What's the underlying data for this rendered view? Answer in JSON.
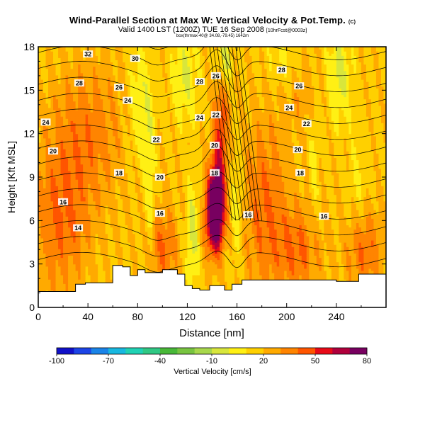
{
  "chart_data": {
    "type": "heatmap",
    "title": "Wind-Parallel Section at Max W: Vertical Velocity & Pot.Temp.",
    "title_mark": "(C)",
    "subtitle": "Valid 1400 LST (1200Z) TUE 16 Sep 2008",
    "subtitle_small": "(12Z)",
    "subtitle_run": "[10hrFcst@0003z]",
    "info_line": "box(thrmax-40@ 34.08,-79.45) 1642m",
    "xlabel": "Distance [nm]",
    "ylabel": "Height [Kft MSL]",
    "xlim": [
      0,
      280
    ],
    "ylim": [
      0,
      18
    ],
    "x_ticks": [
      "0",
      "40",
      "80",
      "120",
      "160",
      "200",
      "240"
    ],
    "y_ticks": [
      "0",
      "3",
      "6",
      "9",
      "12",
      "15",
      "18"
    ],
    "colorbar": {
      "label": "Vertical Velocity [cm/s]",
      "tick_labels": [
        "-100",
        "-70",
        "-40",
        "-10",
        "20",
        "50",
        "80"
      ],
      "range": [
        -100,
        80
      ],
      "colors": [
        "#1010c8",
        "#1c44e6",
        "#1a84e8",
        "#18b8e0",
        "#20d2b4",
        "#30c884",
        "#48b838",
        "#78c440",
        "#a8d84c",
        "#d8e63c",
        "#fff014",
        "#ffd000",
        "#ffaa00",
        "#ff8400",
        "#ff5500",
        "#e80a18",
        "#b0003c",
        "#780060"
      ]
    },
    "updraft_core": {
      "x": 142,
      "z": 6.5,
      "max_w": 80
    },
    "theta_contour_labels": [
      {
        "label": "14",
        "x": 32,
        "z": 5.5
      },
      {
        "label": "16",
        "x": 20,
        "z": 7.3
      },
      {
        "label": "16",
        "x": 98,
        "z": 6.5
      },
      {
        "label": "16",
        "x": 169,
        "z": 6.4
      },
      {
        "label": "16",
        "x": 230,
        "z": 6.3
      },
      {
        "label": "18",
        "x": 65,
        "z": 9.3
      },
      {
        "label": "18",
        "x": 142,
        "z": 9.3
      },
      {
        "label": "18",
        "x": 211,
        "z": 9.3
      },
      {
        "label": "20",
        "x": 12,
        "z": 10.8
      },
      {
        "label": "20",
        "x": 98,
        "z": 9.0
      },
      {
        "label": "20",
        "x": 142,
        "z": 11.2
      },
      {
        "label": "20",
        "x": 209,
        "z": 10.9
      },
      {
        "label": "22",
        "x": 95,
        "z": 11.6
      },
      {
        "label": "22",
        "x": 216,
        "z": 12.7
      },
      {
        "label": "24",
        "x": 6,
        "z": 12.8
      },
      {
        "label": "24",
        "x": 72,
        "z": 14.3
      },
      {
        "label": "24",
        "x": 130,
        "z": 13.1
      },
      {
        "label": "24",
        "x": 202,
        "z": 13.8
      },
      {
        "label": "26",
        "x": 65,
        "z": 15.2
      },
      {
        "label": "26",
        "x": 143,
        "z": 16.0
      },
      {
        "label": "26",
        "x": 210,
        "z": 15.3
      },
      {
        "label": "28",
        "x": 33,
        "z": 15.5
      },
      {
        "label": "28",
        "x": 130,
        "z": 15.6
      },
      {
        "label": "28",
        "x": 196,
        "z": 16.4
      },
      {
        "label": "30",
        "x": 78,
        "z": 17.2
      },
      {
        "label": "32",
        "x": 40,
        "z": 17.5
      },
      {
        "label": "22",
        "x": 143,
        "z": 13.3
      }
    ],
    "terrain": [
      [
        0,
        1.1
      ],
      [
        30,
        1.1
      ],
      [
        30,
        1.6
      ],
      [
        38,
        1.6
      ],
      [
        38,
        1.7
      ],
      [
        60,
        1.7
      ],
      [
        60,
        2.9
      ],
      [
        68,
        2.9
      ],
      [
        68,
        2.8
      ],
      [
        74,
        2.8
      ],
      [
        74,
        2.2
      ],
      [
        80,
        2.2
      ],
      [
        80,
        2.6
      ],
      [
        86,
        2.6
      ],
      [
        86,
        2.4
      ],
      [
        100,
        2.4
      ],
      [
        100,
        2.6
      ],
      [
        112,
        2.6
      ],
      [
        112,
        2.3
      ],
      [
        118,
        2.3
      ],
      [
        118,
        1.5
      ],
      [
        124,
        1.5
      ],
      [
        124,
        1.3
      ],
      [
        130,
        1.3
      ],
      [
        130,
        1.2
      ],
      [
        138,
        1.2
      ],
      [
        138,
        1.5
      ],
      [
        150,
        1.5
      ],
      [
        150,
        1.2
      ],
      [
        156,
        1.2
      ],
      [
        156,
        1.6
      ],
      [
        164,
        1.6
      ],
      [
        164,
        1.9
      ],
      [
        240,
        1.9
      ],
      [
        240,
        1.8
      ],
      [
        258,
        1.8
      ],
      [
        258,
        2.3
      ],
      [
        280,
        2.3
      ]
    ],
    "fields": [
      {
        "x": 18,
        "z": 6,
        "sx": 22,
        "sz": 5,
        "w": 22
      },
      {
        "x": 40,
        "z": 12,
        "sx": 30,
        "sz": 5,
        "w": 18
      },
      {
        "x": 100,
        "z": 4,
        "sx": 12,
        "sz": 3,
        "w": 22
      },
      {
        "x": 182,
        "z": 7,
        "sx": 18,
        "sz": 6,
        "w": 22
      },
      {
        "x": 210,
        "z": 4,
        "sx": 18,
        "sz": 3,
        "w": 22
      },
      {
        "x": 262,
        "z": 4,
        "sx": 14,
        "sz": 3,
        "w": 24
      },
      {
        "x": 212,
        "z": 15,
        "sx": 16,
        "sz": 3,
        "w": 10
      },
      {
        "x": 142,
        "z": 6.5,
        "sx": 7,
        "sz": 2.6,
        "w": 85
      },
      {
        "x": 145,
        "z": 9.5,
        "sx": 6,
        "sz": 3.5,
        "w": 30
      },
      {
        "x": 148,
        "z": 14,
        "sx": 6,
        "sz": 3.5,
        "w": 22
      },
      {
        "x": 124,
        "z": 5,
        "sx": 5,
        "sz": 4,
        "w": -22
      },
      {
        "x": 160,
        "z": 7,
        "sx": 5,
        "sz": 4,
        "w": -18
      },
      {
        "x": 90,
        "z": 8,
        "sx": 4,
        "sz": 6,
        "w": -16
      },
      {
        "x": 222,
        "z": 10,
        "sx": 4,
        "sz": 5,
        "w": -12
      },
      {
        "x": 258,
        "z": 8,
        "sx": 8,
        "sz": 4,
        "w": -10
      },
      {
        "x": 82,
        "z": 14,
        "sx": 10,
        "sz": 4,
        "w": -18
      },
      {
        "x": 118,
        "z": 16,
        "sx": 10,
        "sz": 3,
        "w": -20
      },
      {
        "x": 150,
        "z": 17,
        "sx": 5,
        "sz": 2,
        "w": -30
      },
      {
        "x": 242,
        "z": 16,
        "sx": 10,
        "sz": 3,
        "w": -22
      },
      {
        "x": 198,
        "z": 17,
        "sx": 14,
        "sz": 2,
        "w": -12
      }
    ],
    "tilts": [
      {
        "x0": 162,
        "z0": 7,
        "dxdz": -1.6
      },
      {
        "x0": 143,
        "z0": 6,
        "dxdz": -0.7
      },
      {
        "x0": 90,
        "z0": 6,
        "dxdz": -1.2
      }
    ],
    "base_w": 18
  }
}
